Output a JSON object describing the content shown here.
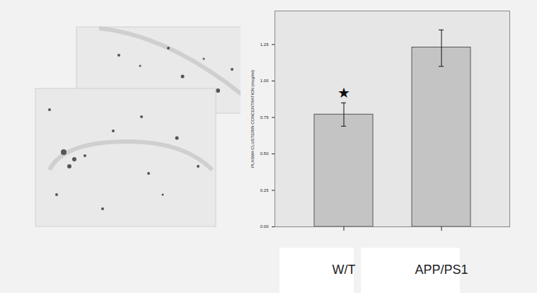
{
  "chart_data": {
    "type": "bar",
    "categories": [
      "W/T",
      "APP/PS1"
    ],
    "values": [
      0.77,
      1.23
    ],
    "error_low": [
      0.69,
      1.1
    ],
    "error_high": [
      0.85,
      1.35
    ],
    "color": "#c4c4c4",
    "y_label": "PLASMA CLUSTERIN CONCENTRATION (mcg/ml)",
    "ylim": [
      0,
      1.48
    ],
    "yticks": [
      {
        "value": 0,
        "label": "0.00"
      },
      {
        "value": 0.25,
        "label": "0.25"
      },
      {
        "value": 0.5,
        "label": "0.50"
      },
      {
        "value": 0.75,
        "label": "0.75"
      },
      {
        "value": 1,
        "label": "1.00"
      },
      {
        "value": 1.25,
        "label": "1.25"
      }
    ],
    "annotations": [
      {
        "text": "★",
        "x": "W/T",
        "y": 0.85
      }
    ],
    "grid": false
  }
}
